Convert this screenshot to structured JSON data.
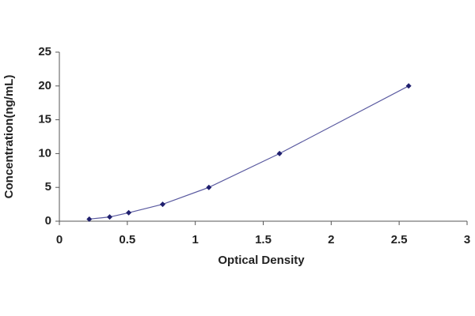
{
  "chart_data": {
    "type": "scatter",
    "x_label": "Optical Density",
    "y_label": "Concentration(ng/mL)",
    "series": [
      {
        "color": "#1f1f6e",
        "line_color": "#5a5aa0",
        "x": [
          0.22,
          0.37,
          0.51,
          0.76,
          1.1,
          1.62,
          2.57
        ],
        "values": [
          0.3125,
          0.625,
          1.25,
          2.5,
          5,
          10,
          20
        ]
      }
    ],
    "xlim": [
      0,
      3
    ],
    "xticks": [
      0,
      0.5,
      1,
      1.5,
      2,
      2.5,
      3
    ],
    "ylim": [
      0,
      25
    ],
    "yticks": [
      0,
      5,
      10,
      15,
      20,
      25
    ],
    "grid": false
  }
}
